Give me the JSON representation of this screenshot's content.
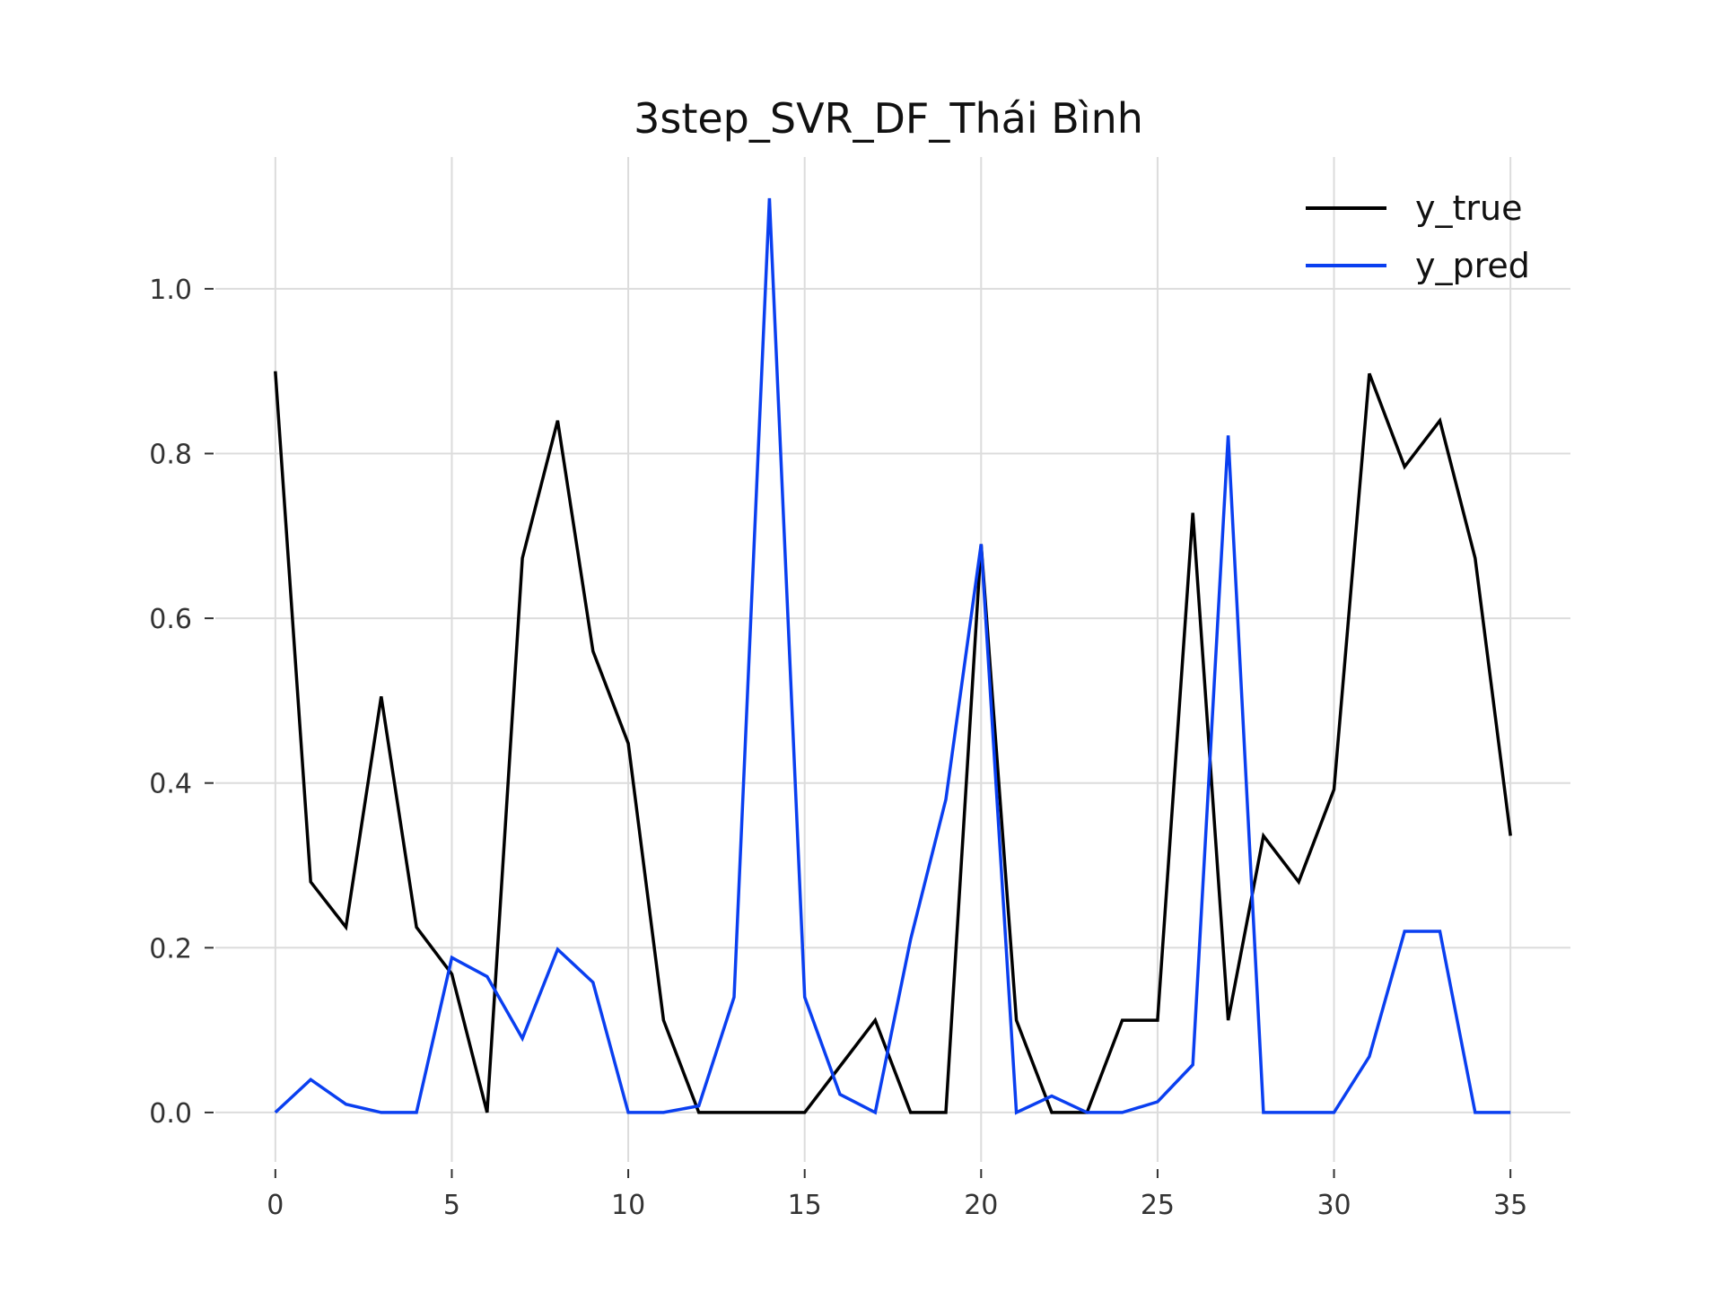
{
  "chart_data": {
    "type": "line",
    "title": "3step_SVR_DF_Thái Bình",
    "xlabel": "",
    "ylabel": "",
    "x": [
      0,
      1,
      2,
      3,
      4,
      5,
      6,
      7,
      8,
      9,
      10,
      11,
      12,
      13,
      14,
      15,
      16,
      17,
      18,
      19,
      20,
      21,
      22,
      23,
      24,
      25,
      26,
      27,
      28,
      29,
      30,
      31,
      32,
      33,
      34,
      35
    ],
    "xlim": [
      -1.7,
      36.7
    ],
    "ylim": [
      -0.06,
      1.16
    ],
    "xticks": [
      0,
      5,
      10,
      15,
      20,
      25,
      30,
      35
    ],
    "xtick_labels": [
      "0",
      "5",
      "10",
      "15",
      "20",
      "25",
      "30",
      "35"
    ],
    "yticks": [
      0.0,
      0.2,
      0.4,
      0.6,
      0.8,
      1.0
    ],
    "ytick_labels": [
      "0.0",
      "0.2",
      "0.4",
      "0.6",
      "0.8",
      "1.0"
    ],
    "grid": true,
    "legend_position": "top-right",
    "series": [
      {
        "name": "y_true",
        "color": "#000000",
        "values": [
          0.9,
          0.28,
          0.225,
          0.505,
          0.225,
          0.168,
          0.0,
          0.673,
          0.84,
          0.56,
          0.448,
          0.112,
          0.0,
          0.0,
          0.0,
          0.0,
          0.056,
          0.112,
          0.0,
          0.0,
          0.69,
          0.112,
          0.0,
          0.0,
          0.112,
          0.112,
          0.728,
          0.112,
          0.336,
          0.28,
          0.392,
          0.897,
          0.784,
          0.84,
          0.673,
          0.336
        ]
      },
      {
        "name": "y_pred",
        "color": "#0a3ff0",
        "values": [
          0.0,
          0.04,
          0.01,
          0.0,
          0.0,
          0.188,
          0.165,
          0.09,
          0.198,
          0.158,
          0.0,
          0.0,
          0.008,
          0.14,
          1.11,
          0.14,
          0.022,
          0.0,
          0.21,
          0.38,
          0.69,
          0.0,
          0.02,
          0.0,
          0.0,
          0.013,
          0.058,
          0.822,
          0.0,
          0.0,
          0.0,
          0.068,
          0.22,
          0.22,
          0.0,
          0.0
        ]
      }
    ]
  }
}
